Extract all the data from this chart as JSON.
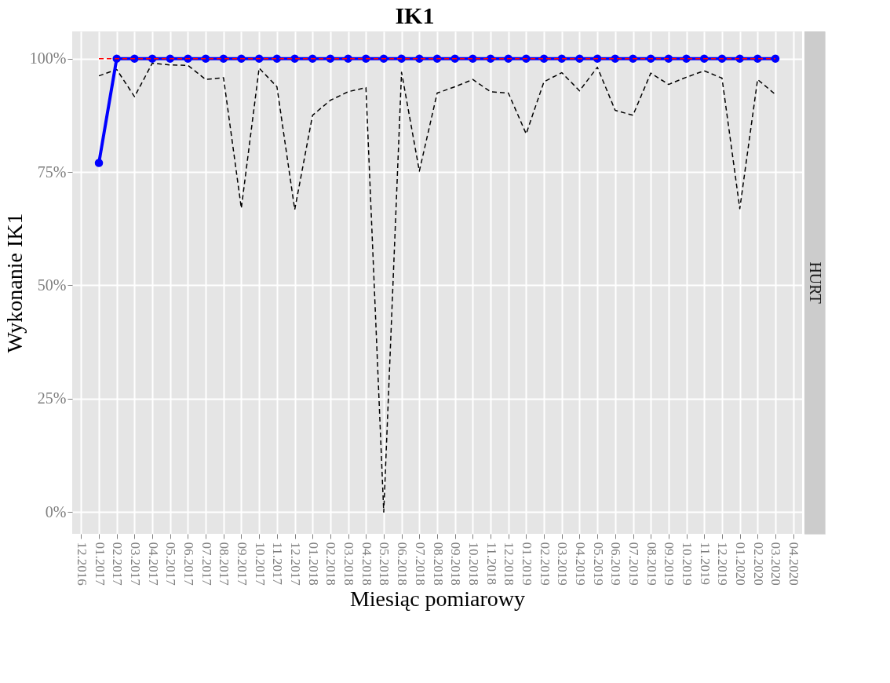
{
  "chart_data": {
    "type": "line",
    "title": "IK1",
    "xlabel": "Miesiąc pomiarowy",
    "ylabel": "Wykonanie IK1",
    "annotations": [
      "HURT"
    ],
    "categories": [
      "12.2016",
      "01.2017",
      "02.2017",
      "03.2017",
      "04.2017",
      "05.2017",
      "06.2017",
      "07.2017",
      "08.2017",
      "09.2017",
      "10.2017",
      "11.2017",
      "12.2017",
      "01.2018",
      "02.2018",
      "03.2018",
      "04.2018",
      "05.2018",
      "06.2018",
      "07.2018",
      "08.2018",
      "09.2018",
      "10.2018",
      "11.2018",
      "12.2018",
      "01.2019",
      "02.2019",
      "03.2019",
      "04.2019",
      "05.2019",
      "06.2019",
      "07.2019",
      "08.2019",
      "09.2019",
      "10.2019",
      "11.2019",
      "12.2019",
      "01.2020",
      "02.2020",
      "03.2020",
      "04.2020"
    ],
    "series": [
      {
        "color": "#000000",
        "line_style": "dashed",
        "marker": "none",
        "values": [
          null,
          96.2,
          97.6,
          91.6,
          99.0,
          98.6,
          98.5,
          95.4,
          95.8,
          67.0,
          97.9,
          93.8,
          66.7,
          87.5,
          90.8,
          92.7,
          93.6,
          0,
          97.0,
          75.2,
          92.4,
          93.8,
          95.4,
          92.7,
          92.4,
          83.4,
          94.9,
          96.9,
          92.9,
          98.1,
          88.6,
          87.5,
          96.8,
          94.3,
          95.9,
          97.3,
          95.7,
          66.9,
          95.4,
          92.1,
          null
        ]
      },
      {
        "color": "#0000ff",
        "line_style": "solid",
        "marker": "circle",
        "values": [
          null,
          77.0,
          100,
          100,
          100,
          100,
          100,
          100,
          100,
          100,
          100,
          100,
          100,
          100,
          100,
          100,
          100,
          100,
          100,
          100,
          100,
          100,
          100,
          100,
          100,
          100,
          100,
          100,
          100,
          100,
          100,
          100,
          100,
          100,
          100,
          100,
          100,
          100,
          100,
          100,
          null
        ]
      },
      {
        "color": "#ff0000",
        "line_style": "dashed",
        "marker": "none",
        "values": [
          null,
          100,
          100,
          100,
          100,
          100,
          100,
          100,
          100,
          100,
          100,
          100,
          100,
          100,
          100,
          100,
          100,
          100,
          100,
          100,
          100,
          100,
          100,
          100,
          100,
          100,
          100,
          100,
          100,
          100,
          100,
          100,
          100,
          100,
          100,
          100,
          100,
          100,
          100,
          100,
          null
        ]
      }
    ],
    "ylim": [
      -4.8,
      106
    ],
    "yticks": [
      {
        "value": 0,
        "label": "0%"
      },
      {
        "value": 25,
        "label": "25%"
      },
      {
        "value": 50,
        "label": "50%"
      },
      {
        "value": 75,
        "label": "75%"
      },
      {
        "value": 100,
        "label": "100%"
      }
    ],
    "grid": true
  }
}
